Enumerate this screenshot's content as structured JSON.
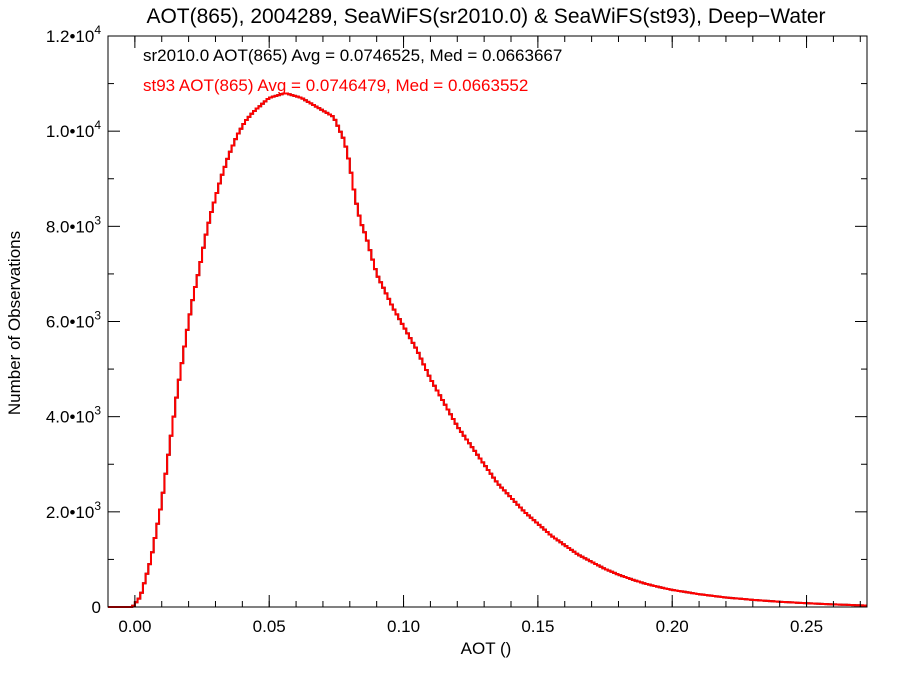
{
  "chart_data": {
    "type": "histogram",
    "title": "AOT(865), 2004289, SeaWiFS(sr2010.0) & SeaWiFS(st93), Deep−Water",
    "xlabel": "AOT ()",
    "ylabel": "Number of Observations",
    "xlim": [
      -0.01,
      0.2725
    ],
    "ylim": [
      0,
      12000
    ],
    "x_ticks": [
      0.0,
      0.05,
      0.1,
      0.15,
      0.2,
      0.25
    ],
    "x_tick_labels": [
      "0.00",
      "0.05",
      "0.10",
      "0.15",
      "0.20",
      "0.25"
    ],
    "y_ticks": [
      0,
      2000,
      4000,
      6000,
      8000,
      10000,
      12000
    ],
    "y_tick_labels": [
      {
        "mantissa": "0",
        "exponent": ""
      },
      {
        "mantissa": "2.0•10",
        "exponent": "3"
      },
      {
        "mantissa": "4.0•10",
        "exponent": "3"
      },
      {
        "mantissa": "6.0•10",
        "exponent": "3"
      },
      {
        "mantissa": "8.0•10",
        "exponent": "3"
      },
      {
        "mantissa": "1.0•10",
        "exponent": "4"
      },
      {
        "mantissa": "1.2•10",
        "exponent": "4"
      }
    ],
    "annotations": [
      {
        "text": "sr2010.0 AOT(865) Avg = 0.0746525, Med = 0.0663667",
        "color": "#000000"
      },
      {
        "text": "st93 AOT(865) Avg = 0.0746479, Med = 0.0663552",
        "color": "#ff0000"
      }
    ],
    "bin_width": 0.001,
    "series": [
      {
        "color": "#000000",
        "key_points": [
          [
            -0.01,
            0
          ],
          [
            -0.001,
            0
          ],
          [
            0.0,
            50
          ],
          [
            0.001,
            150
          ],
          [
            0.002,
            200
          ],
          [
            0.003,
            400
          ],
          [
            0.004,
            600
          ],
          [
            0.006,
            1000
          ],
          [
            0.008,
            1600
          ],
          [
            0.01,
            2200
          ],
          [
            0.012,
            3000
          ],
          [
            0.014,
            3800
          ],
          [
            0.016,
            4600
          ],
          [
            0.018,
            5300
          ],
          [
            0.02,
            6000
          ],
          [
            0.022,
            6600
          ],
          [
            0.024,
            7100
          ],
          [
            0.026,
            7700
          ],
          [
            0.028,
            8200
          ],
          [
            0.03,
            8600
          ],
          [
            0.032,
            9000
          ],
          [
            0.035,
            9500
          ],
          [
            0.038,
            9900
          ],
          [
            0.041,
            10200
          ],
          [
            0.044,
            10400
          ],
          [
            0.047,
            10550
          ],
          [
            0.05,
            10700
          ],
          [
            0.053,
            10750
          ],
          [
            0.056,
            10800
          ],
          [
            0.059,
            10750
          ],
          [
            0.062,
            10700
          ],
          [
            0.065,
            10600
          ],
          [
            0.068,
            10500
          ],
          [
            0.071,
            10400
          ],
          [
            0.074,
            10300
          ],
          [
            0.076,
            10050
          ],
          [
            0.078,
            9800
          ],
          [
            0.08,
            9300
          ],
          [
            0.082,
            8600
          ],
          [
            0.084,
            8100
          ],
          [
            0.086,
            7800
          ],
          [
            0.088,
            7400
          ],
          [
            0.09,
            7000
          ],
          [
            0.093,
            6650
          ],
          [
            0.096,
            6300
          ],
          [
            0.1,
            5900
          ],
          [
            0.105,
            5400
          ],
          [
            0.11,
            4800
          ],
          [
            0.115,
            4300
          ],
          [
            0.12,
            3800
          ],
          [
            0.125,
            3400
          ],
          [
            0.13,
            3000
          ],
          [
            0.135,
            2600
          ],
          [
            0.14,
            2300
          ],
          [
            0.145,
            2000
          ],
          [
            0.15,
            1750
          ],
          [
            0.155,
            1500
          ],
          [
            0.16,
            1300
          ],
          [
            0.165,
            1100
          ],
          [
            0.17,
            950
          ],
          [
            0.175,
            800
          ],
          [
            0.18,
            680
          ],
          [
            0.185,
            580
          ],
          [
            0.19,
            490
          ],
          [
            0.195,
            420
          ],
          [
            0.2,
            360
          ],
          [
            0.21,
            270
          ],
          [
            0.22,
            200
          ],
          [
            0.23,
            150
          ],
          [
            0.24,
            110
          ],
          [
            0.25,
            80
          ],
          [
            0.26,
            55
          ],
          [
            0.2725,
            30
          ]
        ]
      },
      {
        "color": "#ff0000",
        "key_points": [
          [
            -0.01,
            0
          ],
          [
            -0.001,
            0
          ],
          [
            0.0,
            50
          ],
          [
            0.001,
            150
          ],
          [
            0.002,
            200
          ],
          [
            0.003,
            400
          ],
          [
            0.004,
            600
          ],
          [
            0.006,
            1000
          ],
          [
            0.008,
            1600
          ],
          [
            0.01,
            2200
          ],
          [
            0.012,
            3000
          ],
          [
            0.014,
            3800
          ],
          [
            0.016,
            4600
          ],
          [
            0.018,
            5300
          ],
          [
            0.02,
            6000
          ],
          [
            0.022,
            6600
          ],
          [
            0.024,
            7100
          ],
          [
            0.026,
            7700
          ],
          [
            0.028,
            8200
          ],
          [
            0.03,
            8600
          ],
          [
            0.032,
            9000
          ],
          [
            0.035,
            9500
          ],
          [
            0.038,
            9900
          ],
          [
            0.041,
            10200
          ],
          [
            0.044,
            10400
          ],
          [
            0.047,
            10550
          ],
          [
            0.05,
            10700
          ],
          [
            0.053,
            10750
          ],
          [
            0.056,
            10800
          ],
          [
            0.059,
            10750
          ],
          [
            0.062,
            10700
          ],
          [
            0.065,
            10600
          ],
          [
            0.068,
            10500
          ],
          [
            0.071,
            10400
          ],
          [
            0.074,
            10300
          ],
          [
            0.076,
            10050
          ],
          [
            0.078,
            9800
          ],
          [
            0.08,
            9300
          ],
          [
            0.082,
            8600
          ],
          [
            0.084,
            8100
          ],
          [
            0.086,
            7800
          ],
          [
            0.088,
            7400
          ],
          [
            0.09,
            7000
          ],
          [
            0.093,
            6650
          ],
          [
            0.096,
            6300
          ],
          [
            0.1,
            5900
          ],
          [
            0.105,
            5400
          ],
          [
            0.11,
            4800
          ],
          [
            0.115,
            4300
          ],
          [
            0.12,
            3800
          ],
          [
            0.125,
            3400
          ],
          [
            0.13,
            3000
          ],
          [
            0.135,
            2600
          ],
          [
            0.14,
            2300
          ],
          [
            0.145,
            2000
          ],
          [
            0.15,
            1750
          ],
          [
            0.155,
            1500
          ],
          [
            0.16,
            1300
          ],
          [
            0.165,
            1100
          ],
          [
            0.17,
            950
          ],
          [
            0.175,
            800
          ],
          [
            0.18,
            680
          ],
          [
            0.185,
            580
          ],
          [
            0.19,
            490
          ],
          [
            0.195,
            420
          ],
          [
            0.2,
            360
          ],
          [
            0.21,
            270
          ],
          [
            0.22,
            200
          ],
          [
            0.23,
            150
          ],
          [
            0.24,
            110
          ],
          [
            0.25,
            80
          ],
          [
            0.26,
            55
          ],
          [
            0.2725,
            30
          ]
        ]
      }
    ]
  }
}
